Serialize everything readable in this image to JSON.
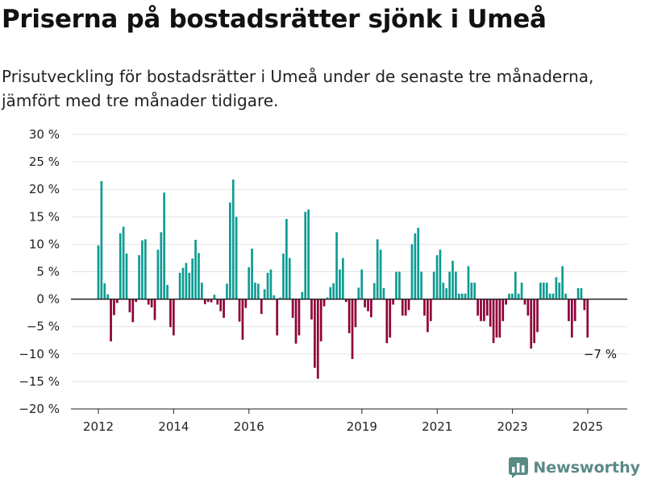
{
  "title": "Priserna på bostadsrätter sjönk i Umeå",
  "subtitle": "Prisutveckling för bostadsrätter i Umeå under de senaste tre månaderna, jämfört med tre månader tidigare.",
  "brand": "Newsworthy",
  "colors": {
    "positive": "#0e9c92",
    "negative": "#8f0038",
    "grid": "#e3e3e3",
    "axis": "#222222",
    "brand": "#5a8a86"
  },
  "chart_data": {
    "type": "bar",
    "ylim": [
      -20,
      30
    ],
    "y_ticks": [
      30,
      25,
      20,
      15,
      10,
      5,
      0,
      -5,
      -10,
      -15,
      -20
    ],
    "y_tick_labels": [
      "30 %",
      "25 %",
      "20 %",
      "15 %",
      "10 %",
      "5 %",
      "0 %",
      "−5 %",
      "−10 %",
      "−15 %",
      "−20 %"
    ],
    "x_start": 2012.0,
    "x_step": 0.0833,
    "x_ticks": [
      2012,
      2014,
      2016,
      2019,
      2021,
      2023,
      2025
    ],
    "values": [
      9.8,
      21.5,
      2.9,
      0.9,
      -7.7,
      -2.9,
      -0.7,
      12.0,
      13.2,
      8.3,
      -2.4,
      -4.2,
      -0.5,
      8.0,
      10.7,
      10.9,
      -1.0,
      -1.5,
      -3.8,
      9.0,
      12.2,
      19.4,
      2.6,
      -5.1,
      -6.6,
      0.0,
      4.8,
      5.7,
      6.6,
      4.8,
      7.4,
      10.8,
      8.4,
      3.0,
      -0.9,
      -0.5,
      -0.6,
      0.8,
      -1.0,
      -2.2,
      -3.4,
      2.8,
      17.6,
      21.8,
      15.0,
      -4.1,
      -7.4,
      -1.6,
      5.8,
      9.2,
      3.0,
      2.8,
      -2.7,
      1.8,
      4.8,
      5.4,
      0.7,
      -6.6,
      0.3,
      8.3,
      14.6,
      7.5,
      -3.4,
      -8.1,
      -6.6,
      1.3,
      15.9,
      16.3,
      -3.7,
      -12.5,
      -14.5,
      -7.7,
      -1.3,
      0.3,
      2.2,
      2.9,
      12.2,
      5.4,
      7.5,
      -0.5,
      -6.2,
      -10.9,
      -5.1,
      2.1,
      5.4,
      -1.5,
      -2.2,
      -3.3,
      2.9,
      10.9,
      9.0,
      2.0,
      -8.0,
      -7.0,
      -1.0,
      5.0,
      5.0,
      -3.0,
      -3.0,
      -2.0,
      10.0,
      12.0,
      13.0,
      5.0,
      -3.0,
      -6.0,
      -4.0,
      5.0,
      8.0,
      9.0,
      3.0,
      2.0,
      5.0,
      7.0,
      5.0,
      1.0,
      1.0,
      1.0,
      6.0,
      3.0,
      3.0,
      -3.0,
      -4.0,
      -4.0,
      -3.0,
      -5.0,
      -8.0,
      -7.0,
      -7.0,
      -4.0,
      -1.0,
      1.0,
      1.0,
      5.0,
      1.0,
      3.0,
      -1.0,
      -3.0,
      -9.0,
      -8.0,
      -6.0,
      3.0,
      3.0,
      3.0,
      1.0,
      1.0,
      4.0,
      3.0,
      6.0,
      1.0,
      -4.0,
      -7.0,
      -4.0,
      2.0,
      2.0,
      -2.0,
      -7.0
    ],
    "annotation": {
      "text": "−7 %"
    }
  }
}
